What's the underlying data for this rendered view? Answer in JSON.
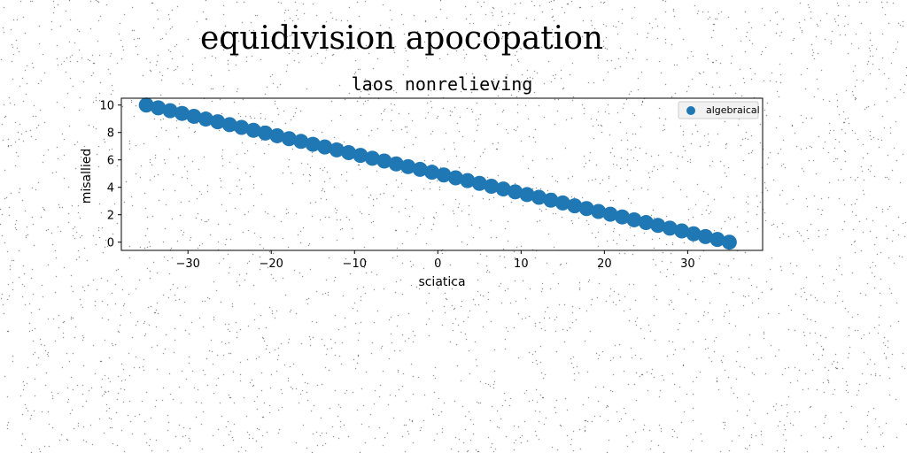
{
  "figure": {
    "suptitle": "equidivision apocopation"
  },
  "chart_data": {
    "type": "scatter",
    "title": "laos nonrelieving",
    "xlabel": "sciatica",
    "ylabel": "misallied",
    "xlim": [
      -38,
      39
    ],
    "ylim": [
      -0.6,
      10.5
    ],
    "xticks": [
      -30,
      -20,
      -10,
      0,
      10,
      20,
      30
    ],
    "xtick_labels": [
      "−30",
      "−20",
      "−10",
      "0",
      "10",
      "20",
      "30"
    ],
    "yticks": [
      0,
      2,
      4,
      6,
      8,
      10
    ],
    "ytick_labels": [
      "0",
      "2",
      "4",
      "6",
      "8",
      "10"
    ],
    "grid": false,
    "legend_position": "top-right",
    "series": [
      {
        "name": "algebraical",
        "color": "#1f77b4",
        "x": [
          -35.0,
          -33.57,
          -32.14,
          -30.71,
          -29.29,
          -27.86,
          -26.43,
          -25.0,
          -23.57,
          -22.14,
          -20.71,
          -19.29,
          -17.86,
          -16.43,
          -15.0,
          -13.57,
          -12.14,
          -10.71,
          -9.29,
          -7.86,
          -6.43,
          -5.0,
          -3.57,
          -2.14,
          -0.71,
          0.71,
          2.14,
          3.57,
          5.0,
          6.43,
          7.86,
          9.29,
          10.71,
          12.14,
          13.57,
          15.0,
          16.43,
          17.86,
          19.29,
          20.71,
          22.14,
          23.57,
          25.0,
          26.43,
          27.86,
          29.29,
          30.71,
          32.14,
          33.57,
          35.0
        ],
        "y": [
          10.0,
          9.8,
          9.59,
          9.39,
          9.18,
          8.98,
          8.78,
          8.57,
          8.37,
          8.16,
          7.96,
          7.76,
          7.55,
          7.35,
          7.14,
          6.94,
          6.73,
          6.53,
          6.33,
          6.12,
          5.92,
          5.71,
          5.51,
          5.31,
          5.1,
          4.9,
          4.69,
          4.49,
          4.29,
          4.08,
          3.88,
          3.67,
          3.47,
          3.27,
          3.06,
          2.86,
          2.65,
          2.45,
          2.24,
          2.04,
          1.84,
          1.63,
          1.43,
          1.22,
          1.02,
          0.82,
          0.61,
          0.41,
          0.2,
          0.0
        ]
      }
    ]
  }
}
